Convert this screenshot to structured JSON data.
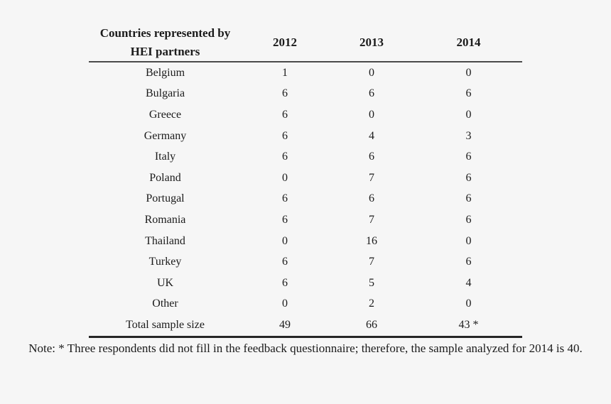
{
  "colors": {
    "background": "#f6f6f6",
    "text": "#1b1b1b",
    "header_rule": "#4a4a4a",
    "bottom_rule": "#262626"
  },
  "table": {
    "header": {
      "country_line1": "Countries represented by",
      "country_line2": "HEI partners",
      "years": [
        "2012",
        "2013",
        "2014"
      ]
    },
    "rows": [
      {
        "country": "Belgium",
        "v2012": "1",
        "v2013": "0",
        "v2014": "0"
      },
      {
        "country": "Bulgaria",
        "v2012": "6",
        "v2013": "6",
        "v2014": "6"
      },
      {
        "country": "Greece",
        "v2012": "6",
        "v2013": "0",
        "v2014": "0"
      },
      {
        "country": "Germany",
        "v2012": "6",
        "v2013": "4",
        "v2014": "3"
      },
      {
        "country": "Italy",
        "v2012": "6",
        "v2013": "6",
        "v2014": "6"
      },
      {
        "country": "Poland",
        "v2012": "0",
        "v2013": "7",
        "v2014": "6"
      },
      {
        "country": "Portugal",
        "v2012": "6",
        "v2013": "6",
        "v2014": "6"
      },
      {
        "country": "Romania",
        "v2012": "6",
        "v2013": "7",
        "v2014": "6"
      },
      {
        "country": "Thailand",
        "v2012": "0",
        "v2013": "16",
        "v2014": "0"
      },
      {
        "country": "Turkey",
        "v2012": "6",
        "v2013": "7",
        "v2014": "6"
      },
      {
        "country": "UK",
        "v2012": "6",
        "v2013": "5",
        "v2014": "4"
      },
      {
        "country": "Other",
        "v2012": "0",
        "v2013": "2",
        "v2014": "0"
      },
      {
        "country": "Total sample size",
        "v2012": "49",
        "v2013": "66",
        "v2014": "43 *"
      }
    ]
  },
  "note": "Note: * Three respondents did not fill in the feedback questionnaire; therefore, the sample analyzed for 2014 is 40."
}
